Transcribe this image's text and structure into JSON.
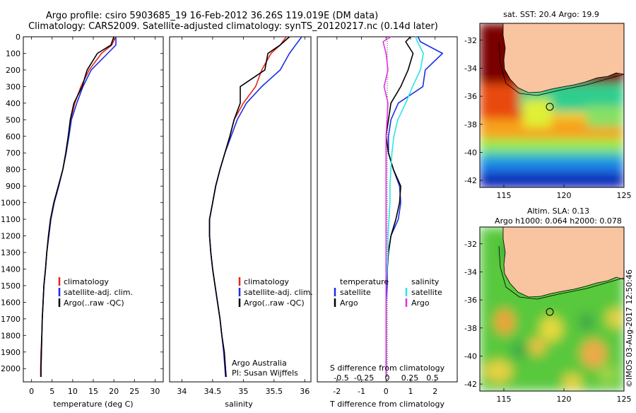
{
  "title": {
    "line1": "Argo profile: csiro 5903685_19 16-Feb-2012 36.26S 119.019E (DM data)",
    "line2": "Climatology: CARS2009. Satellite-adjusted climatology: synTS_20120217.nc (0.14d later)"
  },
  "credits": {
    "org": "Argo Australia",
    "pi": "PI: Susan Wijffels",
    "stamp": "©IMOS 03-Aug-2017 12:50:46"
  },
  "colors": {
    "climatology": "#e8231a",
    "satellite": "#1a2ee8",
    "argo": "#000000",
    "salinity_satellite": "#29e6e6",
    "salinity_argo": "#e62ee6",
    "land": "#f9c4a0"
  },
  "chart_data": [
    {
      "type": "line",
      "name": "temperature-profile",
      "xlabel": "temperature (deg C)",
      "ylabel": "",
      "xlim": [
        -2,
        32
      ],
      "ylim": [
        2080,
        0
      ],
      "xticks": [
        0,
        5,
        10,
        15,
        20,
        25,
        30
      ],
      "yticks": [
        0,
        100,
        200,
        300,
        400,
        500,
        600,
        700,
        800,
        900,
        1000,
        1100,
        1200,
        1300,
        1400,
        1500,
        1600,
        1700,
        1800,
        1900,
        2000
      ],
      "legend": [
        "climatology",
        "satellite-adj. clim.",
        "Argo(..raw -QC)"
      ],
      "series": [
        {
          "name": "climatology",
          "color": "#e8231a",
          "x": [
            20.5,
            19.5,
            17,
            14,
            12,
            10.5,
            9.5,
            9,
            8.4,
            7.6,
            6.6,
            5.5,
            4.7,
            4.2,
            3.7,
            3.4,
            3.0,
            2.8,
            2.6,
            2.5,
            2.3,
            2.2,
            2.2
          ],
          "y": [
            0,
            50,
            100,
            200,
            300,
            400,
            500,
            600,
            700,
            800,
            900,
            1000,
            1100,
            1200,
            1300,
            1400,
            1500,
            1600,
            1700,
            1800,
            1900,
            2000,
            2050
          ]
        },
        {
          "name": "satellite-adj. clim.",
          "color": "#1a2ee8",
          "x": [
            20.5,
            20.5,
            18.5,
            14.5,
            12.5,
            11,
            9.7,
            9.1,
            8.4,
            7.6,
            6.6,
            5.5,
            4.7,
            4.2,
            3.7,
            3.4,
            3.0,
            2.8,
            2.6,
            2.5,
            2.4,
            2.3,
            2.3
          ],
          "y": [
            0,
            50,
            100,
            200,
            300,
            400,
            500,
            600,
            700,
            800,
            900,
            1000,
            1100,
            1200,
            1300,
            1400,
            1500,
            1600,
            1700,
            1800,
            1900,
            2000,
            2050
          ]
        },
        {
          "name": "Argo(..raw -QC)",
          "color": "#000000",
          "x": [
            20,
            19.3,
            16,
            13.5,
            12.3,
            10.3,
            9.4,
            8.9,
            8.3,
            7.6,
            6.5,
            5.4,
            4.6,
            4.1,
            3.7,
            3.4,
            3.0,
            2.8,
            2.6,
            2.5,
            2.4,
            2.3,
            2.3
          ],
          "y": [
            0,
            50,
            100,
            200,
            300,
            400,
            500,
            600,
            700,
            800,
            900,
            1000,
            1100,
            1200,
            1300,
            1400,
            1500,
            1600,
            1700,
            1800,
            1900,
            2000,
            2050
          ]
        }
      ]
    },
    {
      "type": "line",
      "name": "salinity-profile",
      "xlabel": "salinity",
      "xlim": [
        33.8,
        36.1
      ],
      "ylim": [
        2080,
        0
      ],
      "xticks": [
        34,
        34.5,
        35,
        35.5,
        36
      ],
      "legend": [
        "climatology",
        "satellite-adj. clim.",
        "Argo(..raw -QC)"
      ],
      "series": [
        {
          "name": "climatology",
          "color": "#e8231a",
          "x": [
            35.7,
            35.6,
            35.45,
            35.3,
            35.2,
            35.0,
            34.85,
            34.78,
            34.7,
            34.62,
            34.55,
            34.5,
            34.45,
            34.45,
            34.47,
            34.5,
            34.54,
            34.58,
            34.62,
            34.65,
            34.69,
            34.71,
            34.72
          ],
          "y": [
            0,
            50,
            100,
            200,
            300,
            400,
            500,
            600,
            700,
            800,
            900,
            1000,
            1100,
            1200,
            1300,
            1400,
            1500,
            1600,
            1700,
            1800,
            1900,
            2000,
            2050
          ]
        },
        {
          "name": "satellite-adj. clim.",
          "color": "#1a2ee8",
          "x": [
            35.95,
            35.85,
            35.75,
            35.6,
            35.3,
            35.05,
            34.9,
            34.8,
            34.7,
            34.62,
            34.55,
            34.5,
            34.45,
            34.45,
            34.47,
            34.5,
            34.54,
            34.58,
            34.62,
            34.65,
            34.68,
            34.7,
            34.71
          ],
          "y": [
            0,
            50,
            100,
            200,
            300,
            400,
            500,
            600,
            700,
            800,
            900,
            1000,
            1100,
            1200,
            1300,
            1400,
            1500,
            1600,
            1700,
            1800,
            1900,
            2000,
            2050
          ]
        },
        {
          "name": "Argo(..raw -QC)",
          "color": "#000000",
          "x": [
            35.75,
            35.6,
            35.4,
            35.35,
            34.95,
            34.95,
            34.85,
            34.78,
            34.7,
            34.62,
            34.55,
            34.5,
            34.45,
            34.45,
            34.47,
            34.5,
            34.54,
            34.58,
            34.62,
            34.65,
            34.69,
            34.71,
            34.72
          ],
          "y": [
            0,
            50,
            100,
            200,
            300,
            400,
            500,
            600,
            700,
            800,
            900,
            1000,
            1100,
            1200,
            1300,
            1400,
            1500,
            1600,
            1700,
            1800,
            1900,
            2000,
            2050
          ]
        }
      ]
    },
    {
      "type": "line",
      "name": "difference-profile",
      "xlabel": "T difference from climatology",
      "top_axis_label": "S difference from climatology",
      "xlim": [
        -2.8,
        2.9
      ],
      "ylim": [
        2080,
        0
      ],
      "xticks": [
        -2,
        -1,
        0,
        1,
        2
      ],
      "top_ticks": [
        "-0.5",
        "-0.25",
        "0",
        "0.25",
        "0.5"
      ],
      "legend_titles": [
        "temperature",
        "salinity"
      ],
      "legend": [
        "satellite",
        "Argo",
        "satellite",
        "Argo"
      ],
      "series": [
        {
          "name": "temperature satellite",
          "color": "#1a2ee8",
          "x": [
            1.3,
            1.4,
            2.3,
            1.6,
            1.5,
            0.5,
            0.2,
            0.1,
            0.1,
            0.3,
            0.55,
            0.6,
            0.5,
            0.2,
            0.1,
            0.05,
            0.05,
            0.0,
            0.0,
            0.0,
            0.0,
            0.0
          ],
          "y": [
            0,
            30,
            100,
            200,
            300,
            400,
            500,
            600,
            700,
            800,
            900,
            1000,
            1100,
            1200,
            1300,
            1400,
            1500,
            1600,
            1700,
            1800,
            1900,
            2050
          ]
        },
        {
          "name": "temperature Argo",
          "color": "#000000",
          "x": [
            1.0,
            0.8,
            1.1,
            0.9,
            0.6,
            0.2,
            0.1,
            0.0,
            0.1,
            0.3,
            0.6,
            0.55,
            0.4,
            0.2,
            0.1,
            0.05,
            0.0,
            0.0,
            0.0,
            0.0,
            0.0,
            0.0
          ],
          "y": [
            0,
            30,
            100,
            200,
            300,
            400,
            500,
            600,
            700,
            800,
            900,
            1000,
            1100,
            1200,
            1300,
            1400,
            1500,
            1600,
            1700,
            1800,
            1900,
            2050
          ]
        },
        {
          "name": "salinity satellite",
          "color": "#29e6e6",
          "x": [
            0.3,
            0.32,
            0.38,
            0.35,
            0.27,
            0.2,
            0.12,
            0.08,
            0.06,
            0.05,
            0.04,
            0.04,
            0.03,
            0.02,
            0.02,
            0.01,
            0.0,
            0.0,
            0.0,
            0.0,
            0.0,
            0.0
          ],
          "y": [
            0,
            30,
            100,
            200,
            300,
            400,
            500,
            600,
            700,
            800,
            900,
            1000,
            1100,
            1200,
            1300,
            1400,
            1500,
            1600,
            1700,
            1800,
            1900,
            2050
          ]
        },
        {
          "name": "salinity Argo",
          "color": "#e62ee6",
          "x": [
            0.05,
            -0.03,
            0.0,
            0.02,
            -0.02,
            0.02,
            0.01,
            0.0,
            0.0,
            0.0,
            0.0,
            0.0,
            0.0,
            0.0,
            0.0,
            0.0,
            0.0,
            0.0,
            0.0,
            0.0,
            0.0,
            0.0
          ],
          "y": [
            0,
            30,
            100,
            200,
            300,
            400,
            500,
            600,
            700,
            800,
            900,
            1000,
            1100,
            1200,
            1300,
            1400,
            1500,
            1600,
            1700,
            1800,
            1900,
            2050
          ]
        }
      ]
    },
    {
      "type": "heatmap",
      "name": "sst-map",
      "title": "sat. SST: 20.4  Argo: 19.9",
      "xlim": [
        113,
        125
      ],
      "ylim": [
        -42.5,
        -30.8
      ],
      "xticks": [
        115,
        120,
        125
      ],
      "yticks": [
        -32,
        -34,
        -36,
        -38,
        -40,
        -42
      ],
      "marker": {
        "lon": 119.019,
        "lat": -36.26
      }
    },
    {
      "type": "heatmap",
      "name": "sla-map",
      "title": [
        "Altim. SLA: 0.13",
        "Argo h1000: 0.064 h2000: 0.078"
      ],
      "xlim": [
        113,
        125
      ],
      "ylim": [
        -42.5,
        -30.8
      ],
      "xticks": [
        115,
        120,
        125
      ],
      "yticks": [
        -32,
        -34,
        -36,
        -38,
        -40,
        -42
      ],
      "marker": {
        "lon": 119.019,
        "lat": -36.26
      }
    }
  ]
}
